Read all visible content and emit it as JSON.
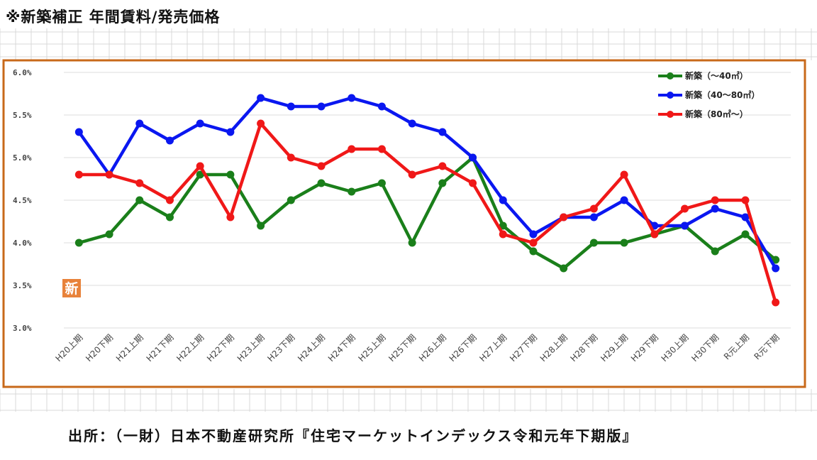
{
  "heading": "※新築補正 年間賃料/発売価格",
  "source": "出所：（一財）日本不動産研究所『住宅マーケットインデックス令和元年下期版』",
  "badge": "新",
  "colors": {
    "frame": "#c8691a",
    "badge_bg": "#e8823a",
    "gridline": "#d9d9d9"
  },
  "chart_data": {
    "type": "line",
    "title": "",
    "xlabel": "",
    "ylabel": "",
    "ylim": [
      3.0,
      6.0
    ],
    "y_ticks": [
      "3.0%",
      "3.5%",
      "4.0%",
      "4.5%",
      "5.0%",
      "5.5%",
      "6.0%"
    ],
    "y_tick_values": [
      3.0,
      3.5,
      4.0,
      4.5,
      5.0,
      5.5,
      6.0
    ],
    "grid": true,
    "legend_position": "top-right",
    "categories": [
      "H20上期",
      "H20下期",
      "H21上期",
      "H21下期",
      "H22上期",
      "H22下期",
      "H23上期",
      "H23下期",
      "H24上期",
      "H24下期",
      "H25上期",
      "H25下期",
      "H26上期",
      "H26下期",
      "H27上期",
      "H27下期",
      "H28上期",
      "H28下期",
      "H29上期",
      "H29下期",
      "H30上期",
      "H30下期",
      "R元上期",
      "R元下期"
    ],
    "series": [
      {
        "name": "新築（～40㎡）",
        "color": "#1a7f1a",
        "values": [
          4.0,
          4.1,
          4.5,
          4.3,
          4.8,
          4.8,
          4.2,
          4.5,
          4.7,
          4.6,
          4.7,
          4.0,
          4.7,
          5.0,
          4.2,
          3.9,
          3.7,
          4.0,
          4.0,
          4.1,
          4.2,
          3.9,
          4.1,
          3.8
        ]
      },
      {
        "name": "新築（40～80㎡）",
        "color": "#0a17f0",
        "values": [
          5.3,
          4.8,
          5.4,
          5.2,
          5.4,
          5.3,
          5.7,
          5.6,
          5.6,
          5.7,
          5.6,
          5.4,
          5.3,
          5.0,
          4.5,
          4.1,
          4.3,
          4.3,
          4.5,
          4.2,
          4.2,
          4.4,
          4.3,
          3.7
        ]
      },
      {
        "name": "新築（80㎡～）",
        "color": "#f01818",
        "values": [
          4.8,
          4.8,
          4.7,
          4.5,
          4.9,
          4.3,
          5.4,
          5.0,
          4.9,
          5.1,
          5.1,
          4.8,
          4.9,
          4.7,
          4.1,
          4.0,
          4.3,
          4.4,
          4.8,
          4.1,
          4.4,
          4.5,
          4.5,
          3.3
        ]
      }
    ]
  }
}
